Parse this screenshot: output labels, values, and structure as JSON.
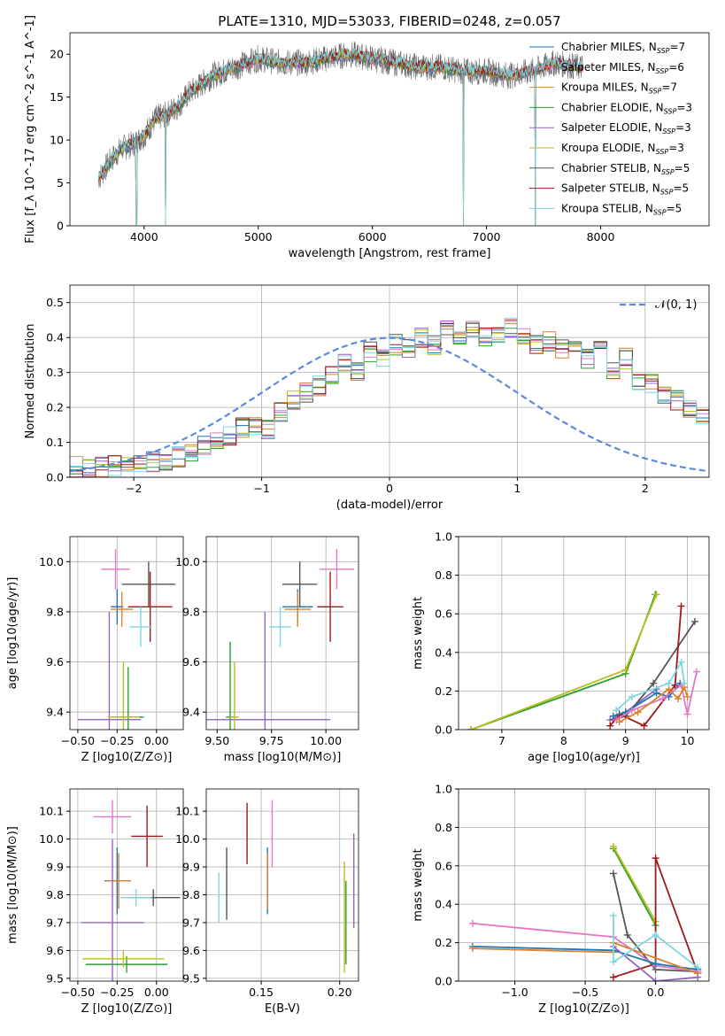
{
  "figure_title": "PLATE=1310, MJD=53033, FIBERID=0248, z=0.057",
  "chart_data": [
    {
      "id": "spectrum",
      "type": "line",
      "xlabel": "wavelength [Angstrom, rest frame]",
      "ylabel": "Flux [f_λ 10^-17 erg cm^-2 s^-1 A^-1]",
      "xlim": [
        3350,
        8950
      ],
      "ylim": [
        0,
        22.5
      ],
      "xticks": [
        4000,
        5000,
        6000,
        7000,
        8000
      ],
      "yticks": [
        0,
        5,
        10,
        15,
        20
      ],
      "grid": false,
      "legend_placement": "right",
      "data_continuum": {
        "x": [
          3600,
          3700,
          3800,
          3900,
          4000,
          4100,
          4200,
          4300,
          4400,
          4500,
          4600,
          4700,
          4800,
          4900,
          5000,
          5200,
          5400,
          5600,
          5800,
          6000,
          6200,
          6400,
          6600,
          6800,
          7000,
          7200,
          7400,
          7600,
          7800
        ],
        "y": [
          5.5,
          7.5,
          9.0,
          9.5,
          10.5,
          12.5,
          13.0,
          14.0,
          15.5,
          16.5,
          17.5,
          18.0,
          18.5,
          19.0,
          19.5,
          19.0,
          19.0,
          19.5,
          20.0,
          19.5,
          19.0,
          18.5,
          18.5,
          18.0,
          18.0,
          17.5,
          18.0,
          19.0,
          18.5
        ]
      },
      "model_dips": [
        {
          "x": 3933,
          "depth_to": 0
        },
        {
          "x": 4190,
          "depth_to": 0
        },
        {
          "x": 6800,
          "depth_to": 0
        },
        {
          "x": 7430,
          "depth_to": 0
        }
      ],
      "series": [
        {
          "name": "Chabrier MILES, N_SSP=7",
          "color": "#1f77b4"
        },
        {
          "name": "Salpeter MILES, N_SSP=6",
          "color": "#e377c2"
        },
        {
          "name": "Kroupa MILES, N_SSP=7",
          "color": "#d9822b"
        },
        {
          "name": "Chabrier ELODIE, N_SSP=3",
          "color": "#2ca02c"
        },
        {
          "name": "Salpeter ELODIE, N_SSP=3",
          "color": "#9467bd"
        },
        {
          "name": "Kroupa ELODIE, N_SSP=3",
          "color": "#bcbd22"
        },
        {
          "name": "Chabrier STELIB, N_SSP=5",
          "color": "#555555"
        },
        {
          "name": "Salpeter STELIB, N_SSP=5",
          "color": "#a01818"
        },
        {
          "name": "Kroupa STELIB, N_SSP=5",
          "color": "#7fd6e0"
        }
      ]
    },
    {
      "id": "residuals",
      "type": "line",
      "xlabel": "(data-model)/error",
      "ylabel": "Normed distribution",
      "xlim": [
        -2.5,
        2.5
      ],
      "ylim": [
        0,
        0.55
      ],
      "xticks": [
        -2,
        -1,
        0,
        1,
        2
      ],
      "xtick_labels": [
        "−2",
        "−1",
        "0",
        "1",
        "2"
      ],
      "yticks": [
        0.0,
        0.1,
        0.2,
        0.3,
        0.4,
        0.5
      ],
      "grid": true,
      "legend_placement": "top-right",
      "reference_curve": {
        "name": "𝒩(0, 1)",
        "color": "#5b8bd9"
      },
      "bin_width": 0.1,
      "hist_base": [
        0.03,
        0.03,
        0.03,
        0.035,
        0.035,
        0.04,
        0.045,
        0.05,
        0.06,
        0.07,
        0.09,
        0.1,
        0.12,
        0.14,
        0.15,
        0.14,
        0.19,
        0.22,
        0.24,
        0.26,
        0.29,
        0.33,
        0.3,
        0.36,
        0.34,
        0.38,
        0.37,
        0.4,
        0.38,
        0.42,
        0.39,
        0.42,
        0.4,
        0.41,
        0.43,
        0.4,
        0.38,
        0.39,
        0.37,
        0.38,
        0.34,
        0.36,
        0.3,
        0.34,
        0.28,
        0.27,
        0.24,
        0.22,
        0.2,
        0.18,
        0.16,
        0.13,
        0.14,
        0.12,
        0.1,
        0.09,
        0.07,
        0.06,
        0.05,
        0.05,
        0.04,
        0.04,
        0.035,
        0.03,
        0.03,
        0.03,
        0.03,
        0.03,
        0.02,
        0.02
      ]
    },
    {
      "id": "age_vs_Z",
      "type": "scatter",
      "xlabel": "Z [log10(Z/Z⊙)]",
      "ylabel": "age [log10(age/yr)]",
      "xlim": [
        -0.55,
        0.17
      ],
      "ylim": [
        9.33,
        10.1
      ],
      "xticks": [
        -0.5,
        -0.25,
        0.0
      ],
      "xtick_labels": [
        "−0.50",
        "−0.25",
        "0.00"
      ],
      "yticks": [
        9.4,
        9.6,
        9.8,
        10.0
      ],
      "grid": true,
      "points": [
        {
          "color": "#1f77b4",
          "x": -0.25,
          "xerr": 0.04,
          "y": 9.82,
          "yerr": 0.07
        },
        {
          "color": "#e377c2",
          "x": -0.26,
          "xerr": 0.09,
          "y": 9.97,
          "yerr": 0.08
        },
        {
          "color": "#d9822b",
          "x": -0.22,
          "xerr": 0.07,
          "y": 9.81,
          "yerr": 0.07
        },
        {
          "color": "#2ca02c",
          "x": -0.18,
          "xerr": 0.1,
          "y": 9.38,
          "yerr": 0.2
        },
        {
          "color": "#9467bd",
          "x": -0.3,
          "xerr": 0.2,
          "y": 9.37,
          "yerr": 0.43
        },
        {
          "color": "#bcbd22",
          "x": -0.21,
          "xerr": 0.1,
          "y": 9.38,
          "yerr": 0.22
        },
        {
          "color": "#555555",
          "x": -0.05,
          "xerr": 0.17,
          "y": 9.91,
          "yerr": 0.09
        },
        {
          "color": "#a01818",
          "x": -0.04,
          "xerr": 0.14,
          "y": 9.82,
          "yerr": 0.14
        },
        {
          "color": "#7fd6e0",
          "x": -0.1,
          "xerr": 0.07,
          "y": 9.74,
          "yerr": 0.08
        }
      ]
    },
    {
      "id": "age_vs_mass",
      "type": "scatter",
      "xlabel": "mass [log10(M/M⊙)]",
      "ylabel": "",
      "xlim": [
        9.45,
        10.15
      ],
      "ylim": [
        9.33,
        10.1
      ],
      "xticks": [
        9.5,
        9.75,
        10.0
      ],
      "xtick_labels": [
        "9.50",
        "9.75",
        "10.00"
      ],
      "yticks": [
        9.4,
        9.6,
        9.8,
        10.0
      ],
      "grid": true,
      "points": [
        {
          "color": "#1f77b4",
          "x": 9.87,
          "xerr": 0.07,
          "y": 9.82,
          "yerr": 0.07
        },
        {
          "color": "#e377c2",
          "x": 10.05,
          "xerr": 0.08,
          "y": 9.97,
          "yerr": 0.08
        },
        {
          "color": "#d9822b",
          "x": 9.87,
          "xerr": 0.06,
          "y": 9.81,
          "yerr": 0.07
        },
        {
          "color": "#2ca02c",
          "x": 9.56,
          "xerr": 0.02,
          "y": 9.38,
          "yerr": 0.3
        },
        {
          "color": "#9467bd",
          "x": 9.72,
          "xerr": 0.3,
          "y": 9.37,
          "yerr": 0.43
        },
        {
          "color": "#bcbd22",
          "x": 9.58,
          "xerr": 0.02,
          "y": 9.38,
          "yerr": 0.22
        },
        {
          "color": "#555555",
          "x": 9.88,
          "xerr": 0.08,
          "y": 9.91,
          "yerr": 0.09
        },
        {
          "color": "#a01818",
          "x": 10.02,
          "xerr": 0.06,
          "y": 9.82,
          "yerr": 0.14
        },
        {
          "color": "#7fd6e0",
          "x": 9.79,
          "xerr": 0.05,
          "y": 9.74,
          "yerr": 0.08
        }
      ]
    },
    {
      "id": "weight_vs_age",
      "type": "line",
      "xlabel": "age [log10(age/yr)]",
      "ylabel": "mass weight",
      "xlim": [
        6.3,
        10.35
      ],
      "ylim": [
        0,
        1.0
      ],
      "xticks": [
        7,
        8,
        9,
        10
      ],
      "yticks": [
        0.0,
        0.2,
        0.4,
        0.6,
        0.8,
        1.0
      ],
      "grid": true,
      "series": [
        {
          "color": "#2ca02c",
          "x": [
            6.5,
            9.0,
            9.48
          ],
          "y": [
            0.0,
            0.29,
            0.7
          ]
        },
        {
          "color": "#bcbd22",
          "x": [
            6.5,
            9.0,
            9.5
          ],
          "y": [
            0.0,
            0.31,
            0.7
          ]
        },
        {
          "color": "#9467bd",
          "x": [
            8.75,
            9.0,
            9.5
          ],
          "y": [
            0.05,
            0.09,
            0.21
          ]
        },
        {
          "color": "#555555",
          "x": [
            8.8,
            9.0,
            9.45,
            10.12
          ],
          "y": [
            0.05,
            0.07,
            0.24,
            0.56
          ]
        },
        {
          "color": "#a01818",
          "x": [
            8.75,
            8.9,
            9.3,
            9.8,
            9.9
          ],
          "y": [
            0.02,
            0.08,
            0.02,
            0.23,
            0.64
          ]
        },
        {
          "color": "#1f77b4",
          "x": [
            8.8,
            9.0,
            9.5,
            9.7,
            9.88
          ],
          "y": [
            0.07,
            0.09,
            0.19,
            0.17,
            0.24
          ]
        },
        {
          "color": "#e377c2",
          "x": [
            8.85,
            9.1,
            9.6,
            9.9,
            10.0,
            10.15
          ],
          "y": [
            0.05,
            0.1,
            0.16,
            0.23,
            0.08,
            0.3
          ]
        },
        {
          "color": "#d9822b",
          "x": [
            8.9,
            9.2,
            9.7,
            9.85,
            9.95,
            10.0
          ],
          "y": [
            0.04,
            0.09,
            0.21,
            0.16,
            0.22,
            0.17
          ]
        },
        {
          "color": "#7fd6e0",
          "x": [
            8.85,
            9.1,
            9.7,
            9.9,
            9.95
          ],
          "y": [
            0.1,
            0.17,
            0.24,
            0.35,
            0.24
          ]
        }
      ]
    },
    {
      "id": "mass_vs_Z",
      "type": "scatter",
      "xlabel": "Z [log10(Z/Z⊙)]",
      "ylabel": "mass [log10(M/M⊙)]",
      "xlim": [
        -0.55,
        0.17
      ],
      "ylim": [
        9.49,
        10.18
      ],
      "xticks": [
        -0.5,
        -0.25,
        0.0
      ],
      "xtick_labels": [
        "−0.50",
        "−0.25",
        "0.00"
      ],
      "yticks": [
        9.5,
        9.6,
        9.7,
        9.8,
        9.9,
        10.0,
        10.1
      ],
      "grid": true,
      "points": [
        {
          "color": "#1f77b4",
          "x": -0.25,
          "xerr": 0.08,
          "y": 9.85,
          "yerr": 0.12
        },
        {
          "color": "#e377c2",
          "x": -0.28,
          "xerr": 0.12,
          "y": 10.08,
          "yerr": 0.06
        },
        {
          "color": "#d9822b",
          "x": -0.24,
          "xerr": 0.08,
          "y": 9.85,
          "yerr": 0.1
        },
        {
          "color": "#2ca02c",
          "x": -0.19,
          "xerr": 0.26,
          "y": 9.55,
          "yerr": 0.03
        },
        {
          "color": "#9467bd",
          "x": -0.28,
          "xerr": 0.2,
          "y": 9.7,
          "yerr": 0.3
        },
        {
          "color": "#bcbd22",
          "x": -0.21,
          "xerr": 0.26,
          "y": 9.57,
          "yerr": 0.03
        },
        {
          "color": "#555555",
          "x": -0.02,
          "xerr": 0.17,
          "y": 9.79,
          "yerr": 0.03
        },
        {
          "color": "#a01818",
          "x": -0.06,
          "xerr": 0.1,
          "y": 10.01,
          "yerr": 0.11
        },
        {
          "color": "#7fd6e0",
          "x": -0.13,
          "xerr": 0.1,
          "y": 9.79,
          "yerr": 0.03
        }
      ]
    },
    {
      "id": "mass_vs_ebv",
      "type": "scatter",
      "xlabel": "E(B-V)",
      "ylabel": "",
      "xlim": [
        0.115,
        0.212
      ],
      "ylim": [
        9.49,
        10.18
      ],
      "xticks": [
        0.15,
        0.2
      ],
      "xtick_labels": [
        "0.15",
        "0.20"
      ],
      "yticks": [
        9.5,
        9.6,
        9.7,
        9.8,
        9.9,
        10.0,
        10.1
      ],
      "grid": true,
      "points": [
        {
          "color": "#1f77b4",
          "x": 0.154,
          "xerr": 0.0,
          "y": 9.85,
          "yerr": 0.12
        },
        {
          "color": "#e377c2",
          "x": 0.157,
          "xerr": 0.0,
          "y": 10.02,
          "yerr": 0.12
        },
        {
          "color": "#d9822b",
          "x": 0.154,
          "xerr": 0.0,
          "y": 9.85,
          "yerr": 0.1
        },
        {
          "color": "#2ca02c",
          "x": 0.204,
          "xerr": 0.0,
          "y": 9.7,
          "yerr": 0.15
        },
        {
          "color": "#9467bd",
          "x": 0.209,
          "xerr": 0.0,
          "y": 9.85,
          "yerr": 0.17
        },
        {
          "color": "#bcbd22",
          "x": 0.203,
          "xerr": 0.0,
          "y": 9.72,
          "yerr": 0.2
        },
        {
          "color": "#555555",
          "x": 0.128,
          "xerr": 0.0,
          "y": 9.84,
          "yerr": 0.13
        },
        {
          "color": "#a01818",
          "x": 0.141,
          "xerr": 0.0,
          "y": 10.02,
          "yerr": 0.11
        },
        {
          "color": "#7fd6e0",
          "x": 0.123,
          "xerr": 0.0,
          "y": 9.79,
          "yerr": 0.09
        }
      ]
    },
    {
      "id": "weight_vs_Z",
      "type": "line",
      "xlabel": "Z [log10(Z/Z⊙)]",
      "ylabel": "mass weight",
      "xlim": [
        -1.4,
        0.38
      ],
      "ylim": [
        0,
        1.0
      ],
      "xticks": [
        -1.0,
        -0.5,
        0.0
      ],
      "xtick_labels": [
        "−1.0",
        "−0.5",
        "0.0"
      ],
      "yticks": [
        0.0,
        0.2,
        0.4,
        0.6,
        0.8,
        1.0
      ],
      "grid": true,
      "series": [
        {
          "color": "#2ca02c",
          "x": [
            -0.3,
            0.0
          ],
          "y": [
            0.69,
            0.29
          ]
        },
        {
          "color": "#bcbd22",
          "x": [
            -0.3,
            0.0
          ],
          "y": [
            0.7,
            0.31
          ]
        },
        {
          "color": "#555555",
          "x": [
            -0.3,
            -0.2,
            0.0,
            0.3
          ],
          "y": [
            0.56,
            0.24,
            0.06,
            0.05
          ]
        },
        {
          "color": "#a01818",
          "x": [
            -0.3,
            0.0,
            0.0,
            0.3
          ],
          "y": [
            0.02,
            0.09,
            0.64,
            0.04
          ]
        },
        {
          "color": "#e377c2",
          "x": [
            -1.3,
            -0.3,
            0.0,
            0.3
          ],
          "y": [
            0.3,
            0.23,
            0.08,
            0.05
          ]
        },
        {
          "color": "#1f77b4",
          "x": [
            -1.3,
            -0.3,
            0.0,
            0.3
          ],
          "y": [
            0.18,
            0.16,
            0.09,
            0.06
          ]
        },
        {
          "color": "#d9822b",
          "x": [
            -1.3,
            -0.3,
            -0.3,
            0.3
          ],
          "y": [
            0.17,
            0.15,
            0.2,
            0.04
          ]
        },
        {
          "color": "#9467bd",
          "x": [
            -0.3,
            0.0,
            0.3
          ],
          "y": [
            0.18,
            0.0,
            0.02
          ]
        },
        {
          "color": "#7fd6e0",
          "x": [
            -0.3,
            -0.3,
            0.0,
            0.3
          ],
          "y": [
            0.34,
            0.1,
            0.24,
            0.07
          ]
        }
      ]
    }
  ]
}
